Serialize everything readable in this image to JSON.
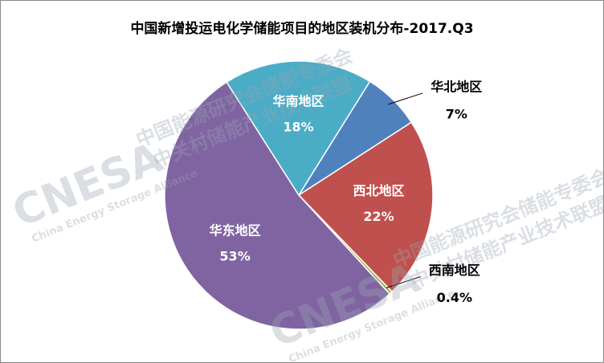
{
  "chart_data": {
    "type": "pie",
    "title": "中国新增投运电化学储能项目的地区装机分布-2017.Q3",
    "categories": [
      "华北地区",
      "西北地区",
      "西南地区",
      "华东地区",
      "华南地区"
    ],
    "values": [
      7,
      22,
      0.4,
      53,
      18
    ],
    "value_labels": [
      "7%",
      "22%",
      "0.4%",
      "53%",
      "18%"
    ],
    "colors": [
      "#4f81bd",
      "#c0504d",
      "#9bbb59",
      "#8064a2",
      "#4bacc6"
    ]
  },
  "watermark": {
    "logo": "CNESA",
    "english": "China Energy Storage Alliance",
    "line1": "中国能源研究会储能专委会",
    "line2": "中关村储能产业技术联盟"
  }
}
